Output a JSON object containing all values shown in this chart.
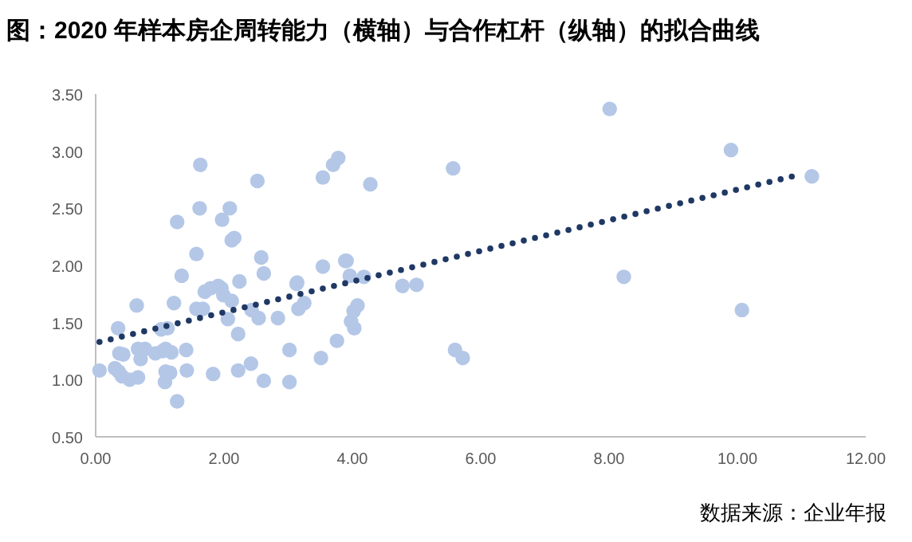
{
  "chart_data": {
    "type": "scatter",
    "title": "图：2020 年样本房企周转能力（横轴）与合作杠杆（纵轴）的拟合曲线",
    "annotations": [
      "数据来源：企业年报"
    ],
    "xlim": [
      0,
      12
    ],
    "xticks": [
      {
        "value": 0,
        "label": "0.00"
      },
      {
        "value": 2,
        "label": "2.00"
      },
      {
        "value": 4,
        "label": "4.00"
      },
      {
        "value": 6,
        "label": "6.00"
      },
      {
        "value": 8,
        "label": "8.00"
      },
      {
        "value": 10,
        "label": "10.00"
      },
      {
        "value": 12,
        "label": "12.00"
      }
    ],
    "ylim": [
      0.5,
      3.5
    ],
    "yticks": [
      {
        "value": 0.5,
        "label": "0.50"
      },
      {
        "value": 1,
        "label": "1.00"
      },
      {
        "value": 1.5,
        "label": "1.50"
      },
      {
        "value": 2,
        "label": "2.00"
      },
      {
        "value": 2.5,
        "label": "2.50"
      },
      {
        "value": 3,
        "label": "3.00"
      },
      {
        "value": 3.5,
        "label": "3.50"
      }
    ],
    "grid": false,
    "series": [
      {
        "type": "scatter",
        "color": "#b4c7e7",
        "marker": "circle",
        "x": [
          0.06,
          0.3,
          0.36,
          0.41,
          0.53,
          0.66,
          0.35,
          0.37,
          0.43,
          0.64,
          0.66,
          0.77,
          0.7,
          0.93,
          1.04,
          1.09,
          1.18,
          1.02,
          1.12,
          1.22,
          1.27,
          1.34,
          1.41,
          1.09,
          1.16,
          1.08,
          1.42,
          1.27,
          1.63,
          1.62,
          1.57,
          1.7,
          1.79,
          1.91,
          1.96,
          1.99,
          1.57,
          1.67,
          1.83,
          1.97,
          2.09,
          2.12,
          2.16,
          2.06,
          2.12,
          2.22,
          2.22,
          2.24,
          2.42,
          2.43,
          2.52,
          2.54,
          2.58,
          2.62,
          2.62,
          2.84,
          3.02,
          3.02,
          3.13,
          3.14,
          3.16,
          3.25,
          3.51,
          3.54,
          3.54,
          3.7,
          3.76,
          3.78,
          3.89,
          3.91,
          3.96,
          3.98,
          4.02,
          4.03,
          4.08,
          4.18,
          4.28,
          4.78,
          5.0,
          5.57,
          5.6,
          5.72,
          8.01,
          8.23,
          9.9,
          10.07,
          11.16
        ],
        "values": [
          1.08,
          1.1,
          1.07,
          1.03,
          1.0,
          1.02,
          1.45,
          1.23,
          1.22,
          1.65,
          1.27,
          1.27,
          1.18,
          1.23,
          1.25,
          1.27,
          1.24,
          1.44,
          1.45,
          1.67,
          2.38,
          1.91,
          1.26,
          1.07,
          1.06,
          0.98,
          1.08,
          0.81,
          2.88,
          2.5,
          2.1,
          1.77,
          1.8,
          1.82,
          1.8,
          1.74,
          1.62,
          1.62,
          1.05,
          2.4,
          2.5,
          2.22,
          2.24,
          1.53,
          1.69,
          1.4,
          1.08,
          1.86,
          1.14,
          1.61,
          2.74,
          1.54,
          2.07,
          1.93,
          0.99,
          1.54,
          1.26,
          0.98,
          1.84,
          1.85,
          1.62,
          1.67,
          1.19,
          2.77,
          1.99,
          2.88,
          1.34,
          2.94,
          2.04,
          2.04,
          1.91,
          1.51,
          1.6,
          1.45,
          1.65,
          1.9,
          2.71,
          1.82,
          1.83,
          2.85,
          1.26,
          1.19,
          3.37,
          1.9,
          3.01,
          1.61,
          2.78
        ]
      },
      {
        "type": "line",
        "color": "#1f3864",
        "line_style": "dotted",
        "marker": "none",
        "x": [
          0.06,
          10.94
        ],
        "values": [
          1.33,
          2.79
        ]
      }
    ]
  }
}
